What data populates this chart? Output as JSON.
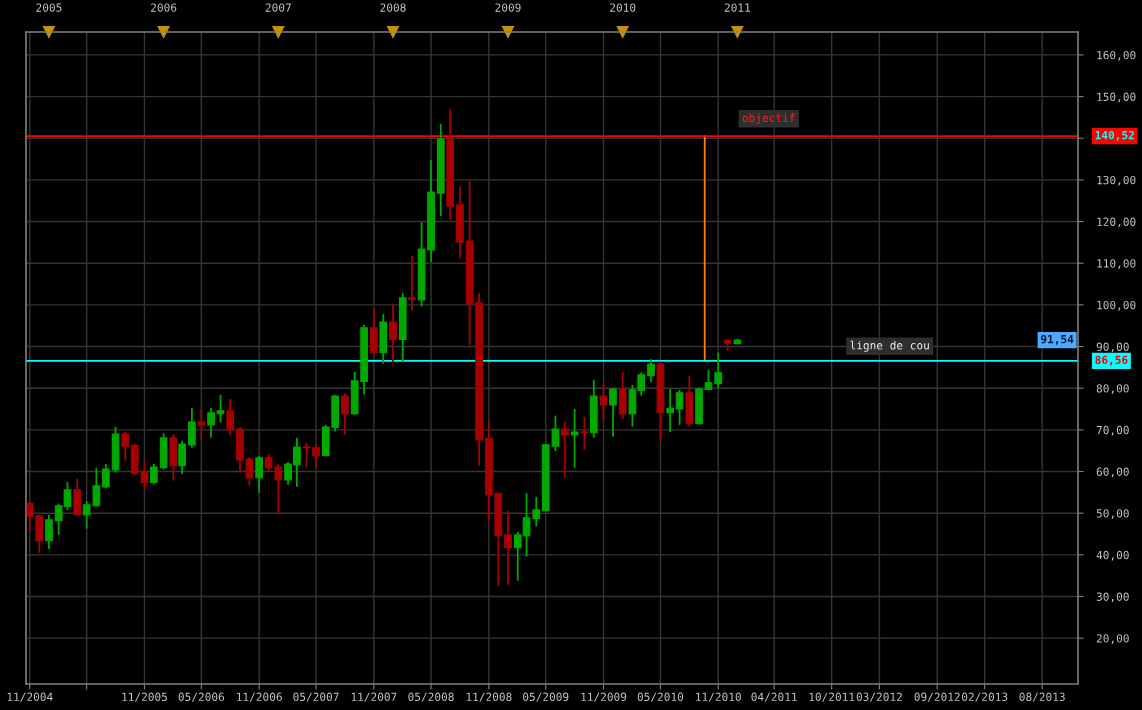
{
  "chart_data": {
    "type": "candlestick",
    "series": [
      {
        "x": [
          "2004-11",
          "2004-12",
          "2005-01",
          "2005-02",
          "2005-03",
          "2005-04",
          "2005-05",
          "2005-06",
          "2005-07",
          "2005-08",
          "2005-09",
          "2005-10",
          "2005-11",
          "2005-12",
          "2006-01",
          "2006-02",
          "2006-03",
          "2006-04",
          "2006-05",
          "2006-06",
          "2006-07",
          "2006-08",
          "2006-09",
          "2006-10",
          "2006-11",
          "2006-12",
          "2007-01",
          "2007-02",
          "2007-03",
          "2007-04",
          "2007-05",
          "2007-06",
          "2007-07",
          "2007-08",
          "2007-09",
          "2007-10",
          "2007-11",
          "2007-12",
          "2008-01",
          "2008-02",
          "2008-03",
          "2008-04",
          "2008-05",
          "2008-06",
          "2008-07",
          "2008-08",
          "2008-09",
          "2008-10",
          "2008-11",
          "2008-12",
          "2009-01",
          "2009-02",
          "2009-03",
          "2009-04",
          "2009-05",
          "2009-06",
          "2009-07",
          "2009-08",
          "2009-09",
          "2009-10",
          "2009-11",
          "2009-12",
          "2010-01",
          "2010-02",
          "2010-03",
          "2010-04",
          "2010-05",
          "2010-06",
          "2010-07",
          "2010-08",
          "2010-09",
          "2010-10",
          "2010-11",
          "2010-12",
          "2011-01"
        ],
        "ohlc": [
          [
            52.4,
            52.6,
            45.6,
            49.2
          ],
          [
            49.4,
            49.6,
            40.5,
            43.4
          ],
          [
            43.4,
            49.6,
            41.4,
            48.4
          ],
          [
            48.2,
            52.3,
            44.8,
            51.8
          ],
          [
            51.6,
            57.5,
            50.8,
            55.6
          ],
          [
            55.6,
            58.2,
            49.5,
            49.6
          ],
          [
            49.6,
            52.9,
            46.3,
            52.0
          ],
          [
            51.8,
            60.9,
            51.6,
            56.6
          ],
          [
            56.3,
            61.8,
            56.0,
            60.6
          ],
          [
            60.4,
            70.7,
            59.8,
            69.0
          ],
          [
            69.0,
            69.5,
            62.6,
            66.1
          ],
          [
            66.3,
            66.6,
            59.2,
            59.6
          ],
          [
            59.9,
            62.3,
            55.6,
            57.4
          ],
          [
            57.4,
            61.8,
            57.0,
            61.1
          ],
          [
            60.9,
            69.2,
            60.5,
            68.1
          ],
          [
            68.1,
            69.0,
            57.8,
            61.4
          ],
          [
            61.4,
            67.4,
            59.4,
            66.6
          ],
          [
            66.4,
            75.3,
            65.7,
            71.9
          ],
          [
            71.9,
            75.0,
            67.6,
            71.2
          ],
          [
            71.2,
            75.3,
            68.1,
            74.1
          ],
          [
            73.9,
            78.4,
            71.7,
            74.6
          ],
          [
            74.6,
            77.4,
            68.8,
            70.0
          ],
          [
            70.2,
            70.7,
            59.7,
            62.8
          ],
          [
            63.0,
            63.5,
            56.6,
            58.5
          ],
          [
            58.5,
            63.8,
            54.9,
            63.3
          ],
          [
            63.3,
            64.2,
            60.2,
            60.9
          ],
          [
            61.1,
            61.8,
            50.0,
            58.0
          ],
          [
            58.0,
            62.3,
            56.8,
            61.8
          ],
          [
            61.6,
            68.1,
            56.3,
            65.9
          ],
          [
            65.9,
            66.9,
            60.9,
            65.7
          ],
          [
            65.7,
            66.4,
            61.0,
            63.8
          ],
          [
            63.8,
            71.2,
            63.8,
            70.7
          ],
          [
            70.6,
            78.4,
            69.6,
            78.1
          ],
          [
            78.1,
            78.8,
            68.9,
            73.9
          ],
          [
            73.9,
            83.9,
            73.6,
            81.8
          ],
          [
            81.6,
            95.2,
            78.5,
            94.5
          ],
          [
            94.5,
            99.3,
            88.5,
            88.5
          ],
          [
            88.5,
            97.8,
            85.9,
            95.9
          ],
          [
            95.9,
            100.0,
            86.1,
            91.7
          ],
          [
            91.7,
            102.9,
            86.4,
            101.7
          ],
          [
            101.7,
            111.7,
            98.6,
            101.3
          ],
          [
            101.2,
            119.9,
            99.6,
            113.4
          ],
          [
            113.2,
            134.7,
            110.3,
            127.1
          ],
          [
            126.8,
            143.4,
            121.3,
            139.8
          ],
          [
            139.8,
            147.0,
            120.4,
            123.7
          ],
          [
            124.0,
            128.5,
            111.2,
            115.1
          ],
          [
            115.3,
            129.7,
            90.4,
            100.2
          ],
          [
            100.5,
            102.9,
            61.4,
            67.6
          ],
          [
            68.0,
            72.0,
            48.4,
            54.4
          ],
          [
            54.8,
            54.8,
            32.6,
            44.6
          ],
          [
            44.8,
            50.6,
            32.8,
            41.7
          ],
          [
            41.7,
            45.5,
            33.8,
            44.8
          ],
          [
            44.6,
            54.8,
            39.6,
            48.9
          ],
          [
            48.7,
            53.9,
            46.8,
            50.8
          ],
          [
            50.6,
            66.6,
            50.4,
            66.4
          ],
          [
            66.1,
            73.4,
            64.9,
            70.2
          ],
          [
            70.2,
            72.0,
            58.5,
            68.8
          ],
          [
            68.8,
            75.0,
            60.9,
            69.5
          ],
          [
            69.5,
            73.1,
            65.2,
            69.3
          ],
          [
            69.3,
            82.0,
            68.1,
            78.1
          ],
          [
            78.1,
            81.1,
            72.4,
            76.0
          ],
          [
            76.0,
            80.0,
            68.4,
            79.8
          ],
          [
            79.8,
            83.9,
            72.6,
            73.9
          ],
          [
            73.9,
            80.8,
            70.8,
            79.6
          ],
          [
            79.4,
            83.8,
            78.2,
            83.2
          ],
          [
            83.0,
            87.0,
            81.4,
            85.8
          ],
          [
            85.8,
            86.4,
            67.2,
            74.1
          ],
          [
            74.1,
            79.8,
            69.5,
            75.2
          ],
          [
            75.0,
            79.6,
            71.2,
            78.9
          ],
          [
            78.9,
            83.0,
            70.8,
            71.5
          ],
          [
            71.5,
            80.1,
            71.3,
            79.8
          ],
          [
            79.7,
            84.4,
            79.6,
            81.3
          ],
          [
            81.1,
            88.5,
            80.1,
            83.7
          ],
          [
            91.5,
            91.8,
            89.0,
            90.8
          ],
          [
            90.7,
            91.9,
            90.6,
            91.54
          ]
        ],
        "colors": [
          "#a80000",
          "#a80000",
          "#00a800",
          "#00a800",
          "#00a800",
          "#a80000",
          "#00a800",
          "#00a800",
          "#00a800",
          "#00a800",
          "#a80000",
          "#a80000",
          "#a80000",
          "#00a800",
          "#00a800",
          "#a80000",
          "#00a800",
          "#00a800",
          "#a80000",
          "#00a800",
          "#00a800",
          "#a80000",
          "#a80000",
          "#a80000",
          "#00a800",
          "#a80000",
          "#a80000",
          "#00a800",
          "#00a800",
          "#a80000",
          "#a80000",
          "#00a800",
          "#00a800",
          "#a80000",
          "#00a800",
          "#00a800",
          "#a80000",
          "#00a800",
          "#a80000",
          "#00a800",
          "#a80000",
          "#00a800",
          "#00a800",
          "#00a800",
          "#a80000",
          "#a80000",
          "#a80000",
          "#a80000",
          "#a80000",
          "#a80000",
          "#a80000",
          "#00a800",
          "#00a800",
          "#00a800",
          "#00a800",
          "#00a800",
          "#a80000",
          "#00a800",
          "#a80000",
          "#00a800",
          "#a80000",
          "#00a800",
          "#a80000",
          "#00a800",
          "#00a800",
          "#00a800",
          "#a80000",
          "#00a800",
          "#00a800",
          "#a80000",
          "#00a800",
          "#00a800",
          "#00a800",
          "#a80000",
          "#00a800"
        ]
      },
      {
        "type": "line",
        "x": [
          "2010-09-19",
          "2010-09-19"
        ],
        "values": [
          86.56,
          140.52
        ],
        "color": "#ff8000"
      }
    ],
    "xlim": [
      "2004-10-20",
      "2013-12-20"
    ],
    "xticks": [
      {
        "value": "2004-11",
        "label": "11/2004"
      },
      {
        "value": "2005-05",
        "label": null
      },
      {
        "value": "2005-11",
        "label": "11/2005"
      },
      {
        "value": "2006-05",
        "label": "05/2006"
      },
      {
        "value": "2006-11",
        "label": "11/2006"
      },
      {
        "value": "2007-05",
        "label": "05/2007"
      },
      {
        "value": "2007-11",
        "label": "11/2007"
      },
      {
        "value": "2008-05",
        "label": "05/2008"
      },
      {
        "value": "2008-11",
        "label": "11/2008"
      },
      {
        "value": "2009-05",
        "label": "05/2009"
      },
      {
        "value": "2009-11",
        "label": "11/2009"
      },
      {
        "value": "2010-05",
        "label": "05/2010"
      },
      {
        "value": "2010-11",
        "label": "11/2010"
      },
      {
        "value": "2011-04-28",
        "label": "04/2011"
      },
      {
        "value": "2011-10-28",
        "label": "10/2011"
      },
      {
        "value": "2012-03-28",
        "label": "03/2012"
      },
      {
        "value": "2012-09-28",
        "label": "09/2012"
      },
      {
        "value": "2013-02-26",
        "label": "02/2013"
      },
      {
        "value": "2013-08-28",
        "label": "08/2013"
      }
    ],
    "x2lim": [
      "2004-10-20",
      "2013-12-20"
    ],
    "x2ticks": [
      "2005",
      "2006",
      "2007",
      "2008",
      "2009",
      "2010",
      "2011"
    ],
    "ylim": [
      9,
      165.5
    ],
    "yticks": [
      {
        "value": 20,
        "label": "20,00"
      },
      {
        "value": 30,
        "label": "30,00"
      },
      {
        "value": 40,
        "label": "40,00"
      },
      {
        "value": 50,
        "label": "50,00"
      },
      {
        "value": 60,
        "label": "60,00"
      },
      {
        "value": 70,
        "label": "70,00"
      },
      {
        "value": 80,
        "label": "80,00"
      },
      {
        "value": 90,
        "label": "90,00"
      },
      {
        "value": 100,
        "label": "100,00"
      },
      {
        "value": 110,
        "label": "110,00"
      },
      {
        "value": 120,
        "label": "120,00"
      },
      {
        "value": 130,
        "label": "130,00"
      },
      {
        "value": 140,
        "label": null
      },
      {
        "value": 150,
        "label": "150,00"
      },
      {
        "value": 160,
        "label": "160,00"
      }
    ],
    "ref_lines": [
      {
        "axis": "y",
        "value": 140.52,
        "label": "140,52",
        "color": "#ff0000"
      },
      {
        "axis": "y",
        "value": 86.56,
        "label": "86,56",
        "color": "#00ffff"
      }
    ],
    "annotations": [
      "objectif",
      "ligne de cou",
      {
        "text": "91,54",
        "y": 91.54
      }
    ],
    "grid": true
  }
}
